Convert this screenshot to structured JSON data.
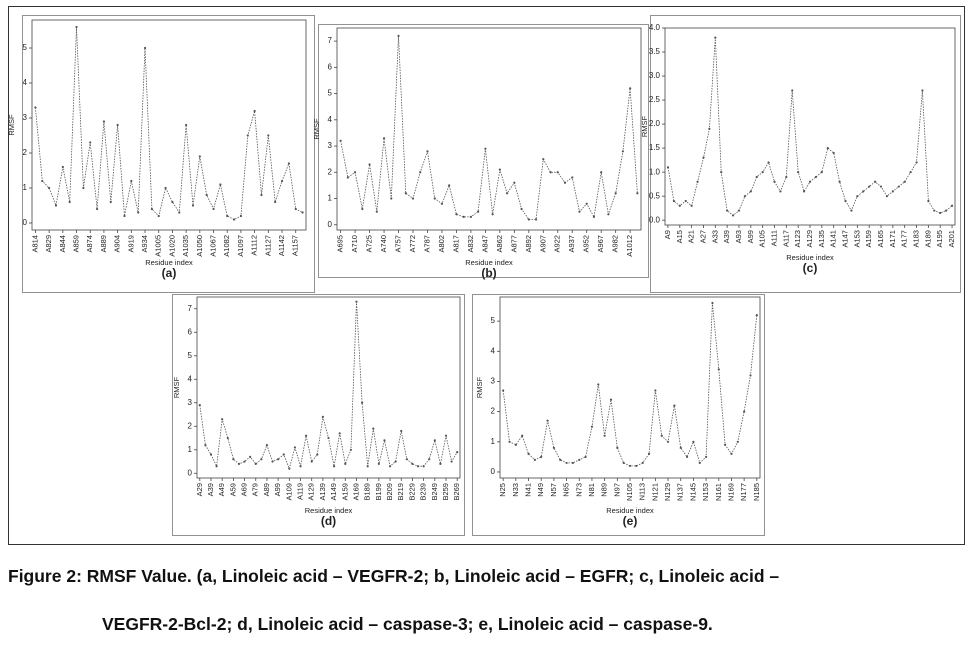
{
  "chart_data": [
    {
      "type": "line",
      "panel": "(a)",
      "y_label": "RMSF",
      "x_label": "Residue index",
      "color": "#555555",
      "categories": [
        "A814",
        null,
        "A829",
        null,
        "A844",
        null,
        "A859",
        null,
        "A874",
        null,
        "A889",
        null,
        "A904",
        null,
        "A919",
        null,
        "A934",
        null,
        "A1005",
        null,
        "A1020",
        null,
        "A1035",
        null,
        "A1050",
        null,
        "A1067",
        null,
        "A1082",
        null,
        "A1097",
        null,
        "A1112",
        null,
        "A1127",
        null,
        "A1142",
        null,
        "A1157",
        null
      ],
      "values": [
        3.3,
        1.2,
        1.0,
        0.5,
        1.6,
        0.6,
        5.6,
        1.0,
        2.3,
        0.4,
        2.9,
        0.6,
        2.8,
        0.2,
        1.2,
        0.3,
        5.0,
        0.4,
        0.2,
        1.0,
        0.6,
        0.3,
        2.8,
        0.5,
        1.9,
        0.8,
        0.4,
        1.1,
        0.2,
        0.1,
        0.2,
        2.5,
        3.2,
        0.8,
        2.5,
        0.6,
        1.2,
        1.7,
        0.4,
        0.3
      ],
      "ylim": [
        -0.2,
        5.8
      ],
      "yticks": [
        0,
        1,
        2,
        3,
        4,
        5
      ]
    },
    {
      "type": "line",
      "panel": "(b)",
      "y_label": "RMSF",
      "x_label": "Residue index",
      "color": "#555555",
      "categories": [
        "A695",
        null,
        "A710",
        null,
        "A725",
        null,
        "A740",
        null,
        "A757",
        null,
        "A772",
        null,
        "A787",
        null,
        "A802",
        null,
        "A817",
        null,
        "A832",
        null,
        "A847",
        null,
        "A862",
        null,
        "A877",
        null,
        "A892",
        null,
        "A907",
        null,
        "A922",
        null,
        "A937",
        null,
        "A952",
        null,
        "A967",
        null,
        "A982",
        null,
        "A1012",
        null
      ],
      "values": [
        3.2,
        1.8,
        2.0,
        0.6,
        2.3,
        0.5,
        3.3,
        1.0,
        7.2,
        1.2,
        1.0,
        2.0,
        2.8,
        1.0,
        0.8,
        1.5,
        0.4,
        0.3,
        0.3,
        0.5,
        2.9,
        0.4,
        2.1,
        1.2,
        1.6,
        0.6,
        0.2,
        0.2,
        2.5,
        2.0,
        2.0,
        1.6,
        1.8,
        0.5,
        0.8,
        0.3,
        2.0,
        0.4,
        1.2,
        2.8,
        5.2,
        1.2
      ],
      "ylim": [
        -0.2,
        7.5
      ],
      "yticks": [
        0,
        1,
        2,
        3,
        4,
        5,
        6,
        7
      ]
    },
    {
      "type": "line",
      "panel": "(c)",
      "y_label": "RMSF",
      "x_label": "Residue index",
      "color": "#555555",
      "categories": [
        "A9",
        null,
        "A15",
        null,
        "A21",
        null,
        "A27",
        null,
        "A33",
        null,
        "A39",
        null,
        "A93",
        null,
        "A99",
        null,
        "A105",
        null,
        "A111",
        null,
        "A117",
        null,
        "A123",
        null,
        "A129",
        null,
        "A135",
        null,
        "A141",
        null,
        "A147",
        null,
        "A153",
        null,
        "A159",
        null,
        "A165",
        null,
        "A171",
        null,
        "A177",
        null,
        "A183",
        null,
        "A189",
        null,
        "A195",
        null,
        "A201"
      ],
      "values": [
        1.1,
        0.4,
        0.3,
        0.4,
        0.3,
        0.8,
        1.3,
        1.9,
        3.8,
        1.0,
        0.2,
        0.1,
        0.2,
        0.5,
        0.6,
        0.9,
        1.0,
        1.2,
        0.8,
        0.6,
        0.9,
        2.7,
        1.0,
        0.6,
        0.8,
        0.9,
        1.0,
        1.5,
        1.4,
        0.8,
        0.4,
        0.2,
        0.5,
        0.6,
        0.7,
        0.8,
        0.7,
        0.5,
        0.6,
        0.7,
        0.8,
        1.0,
        1.2,
        2.7,
        0.4,
        0.2,
        0.15,
        0.2,
        0.3
      ],
      "ylim": [
        -0.1,
        4.0
      ],
      "yticks": [
        {
          "value": 0,
          "label": "0.0"
        },
        0.5,
        {
          "value": 1,
          "label": "1.0"
        },
        1.5,
        {
          "value": 2,
          "label": "2.0"
        },
        2.5,
        {
          "value": 3,
          "label": "3.0"
        },
        3.5,
        {
          "value": 4,
          "label": "4.0"
        }
      ]
    },
    {
      "type": "line",
      "panel": "(d)",
      "y_label": "RMSF",
      "x_label": "Residue index",
      "color": "#555555",
      "categories": [
        "A29",
        null,
        "A39",
        null,
        "A49",
        null,
        "A59",
        null,
        "A69",
        null,
        "A79",
        null,
        "A89",
        null,
        "A99",
        null,
        "A109",
        null,
        "A119",
        null,
        "A129",
        null,
        "A139",
        null,
        "A149",
        null,
        "A159",
        null,
        "A169",
        null,
        "B189",
        null,
        "B199",
        null,
        "B209",
        null,
        "B219",
        null,
        "B229",
        null,
        "B239",
        null,
        "B249",
        null,
        "B259",
        null,
        "B269"
      ],
      "values": [
        2.9,
        1.2,
        0.8,
        0.3,
        2.3,
        1.5,
        0.6,
        0.4,
        0.5,
        0.7,
        0.4,
        0.6,
        1.2,
        0.5,
        0.6,
        0.8,
        0.2,
        1.1,
        0.3,
        1.6,
        0.5,
        0.8,
        2.4,
        1.5,
        0.3,
        1.7,
        0.4,
        1.0,
        7.3,
        3.0,
        0.3,
        1.9,
        0.4,
        1.4,
        0.3,
        0.5,
        1.8,
        0.6,
        0.4,
        0.3,
        0.3,
        0.6,
        1.4,
        0.4,
        1.6,
        0.5,
        0.9
      ],
      "ylim": [
        -0.2,
        7.5
      ],
      "yticks": [
        0,
        1,
        2,
        3,
        4,
        5,
        6,
        7
      ]
    },
    {
      "type": "line",
      "panel": "(e)",
      "y_label": "RMSF",
      "x_label": "Residue index",
      "color": "#555555",
      "categories": [
        "N25",
        null,
        "N33",
        null,
        "N41",
        null,
        "N49",
        null,
        "N57",
        null,
        "N65",
        null,
        "N73",
        null,
        "N81",
        null,
        "N89",
        null,
        "N97",
        null,
        "N105",
        null,
        "N113",
        null,
        "N121",
        null,
        "N129",
        null,
        "N137",
        null,
        "N145",
        null,
        "N153",
        null,
        "N161",
        null,
        "N169",
        null,
        "N177",
        null,
        "N185"
      ],
      "values": [
        2.7,
        1.0,
        0.9,
        1.2,
        0.6,
        0.4,
        0.5,
        1.7,
        0.8,
        0.4,
        0.3,
        0.3,
        0.4,
        0.5,
        1.5,
        2.9,
        1.2,
        2.4,
        0.8,
        0.3,
        0.2,
        0.2,
        0.3,
        0.6,
        2.7,
        1.2,
        1.0,
        2.2,
        0.8,
        0.5,
        1.0,
        0.3,
        0.5,
        5.6,
        3.4,
        0.9,
        0.6,
        1.0,
        2.0,
        3.2,
        5.2
      ],
      "ylim": [
        -0.2,
        5.8
      ],
      "yticks": [
        0,
        1,
        2,
        3,
        4,
        5
      ]
    }
  ],
  "caption": [
    "Figure 2: RMSF Value. (a, Linoleic acid – VEGFR-2; b, Linoleic acid – EGFR; c, Linoleic acid –",
    "VEGFR-2-Bcl-2; d, Linoleic acid – caspase-3; e, Linoleic acid – caspase-9."
  ]
}
